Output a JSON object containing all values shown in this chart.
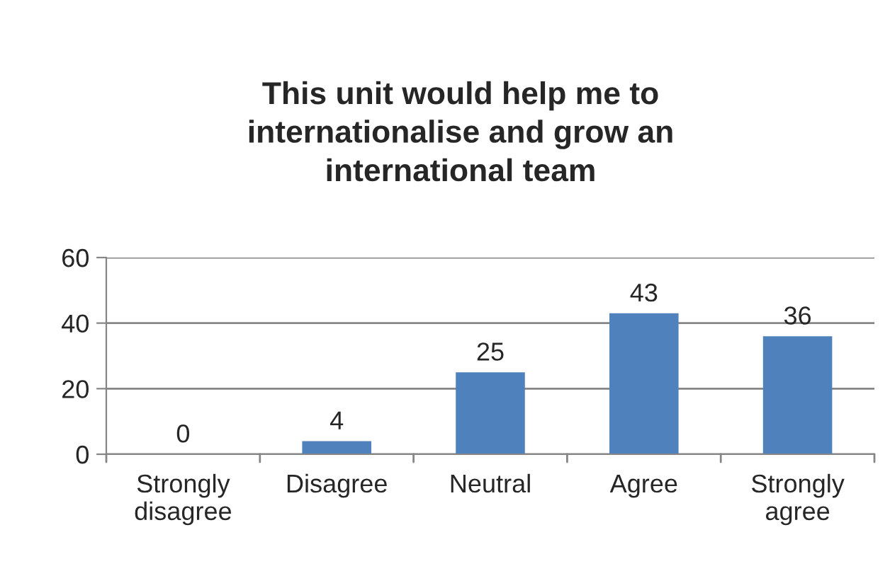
{
  "chart_data": {
    "type": "bar",
    "title": "This unit would help me to\ninternationalise and grow an\ninternational team",
    "categories": [
      "Strongly\ndisagree",
      "Disagree",
      "Neutral",
      "Agree",
      "Strongly\nagree"
    ],
    "values": [
      0,
      4,
      25,
      43,
      36
    ],
    "color": "#4f81bd",
    "ylim": [
      0,
      60
    ],
    "yticks": [
      0,
      20,
      40,
      60
    ],
    "grid": "y",
    "data_labels": true
  }
}
